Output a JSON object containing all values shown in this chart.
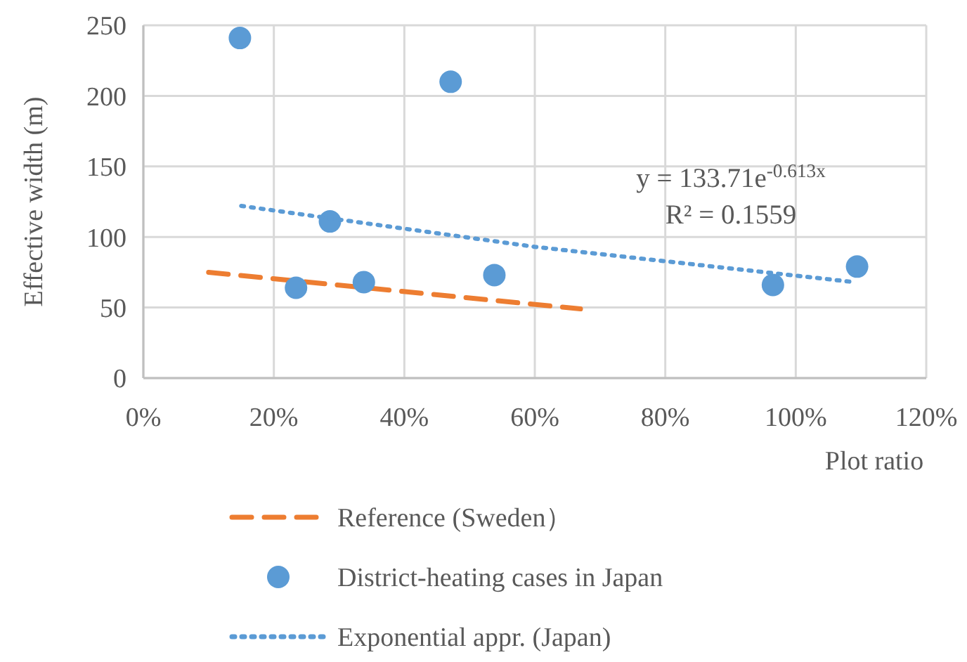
{
  "chart_data": {
    "type": "scatter",
    "xlabel": "Plot ratio",
    "ylabel": "Effective width (m)",
    "xlim": [
      0,
      120
    ],
    "ylim": [
      0,
      250
    ],
    "xticks": [
      {
        "value": 0,
        "label": "0%"
      },
      {
        "value": 20,
        "label": "20%"
      },
      {
        "value": 40,
        "label": "40%"
      },
      {
        "value": 60,
        "label": "60%"
      },
      {
        "value": 80,
        "label": "80%"
      },
      {
        "value": 100,
        "label": "100%"
      },
      {
        "value": 120,
        "label": "120%"
      }
    ],
    "yticks": [
      0,
      50,
      100,
      150,
      200,
      250
    ],
    "grid": true,
    "legend": "bottom",
    "series": [
      {
        "name": "Reference (Sweden）",
        "type": "line",
        "color": "#ed7d31",
        "line_style": "dashed",
        "x": [
          10,
          67
        ],
        "values": [
          75,
          49
        ]
      },
      {
        "name": "District-heating cases in Japan",
        "color": "#5b9bd5",
        "marker": "circle",
        "x": [
          14.8,
          47.1,
          28.6,
          23.4,
          33.8,
          53.8,
          96.5,
          109.4
        ],
        "values": [
          241,
          210,
          111,
          64,
          68,
          73,
          66,
          79
        ]
      },
      {
        "name": "Exponential appr. (Japan)",
        "type": "line",
        "color": "#5b9bd5",
        "line_style": "dotted",
        "x": [
          15,
          60,
          109
        ],
        "values": [
          122,
          93,
          68
        ]
      }
    ],
    "annotations": [
      "y = 133.71e$^{-0.613x}$",
      "R² = 0.1559"
    ]
  }
}
